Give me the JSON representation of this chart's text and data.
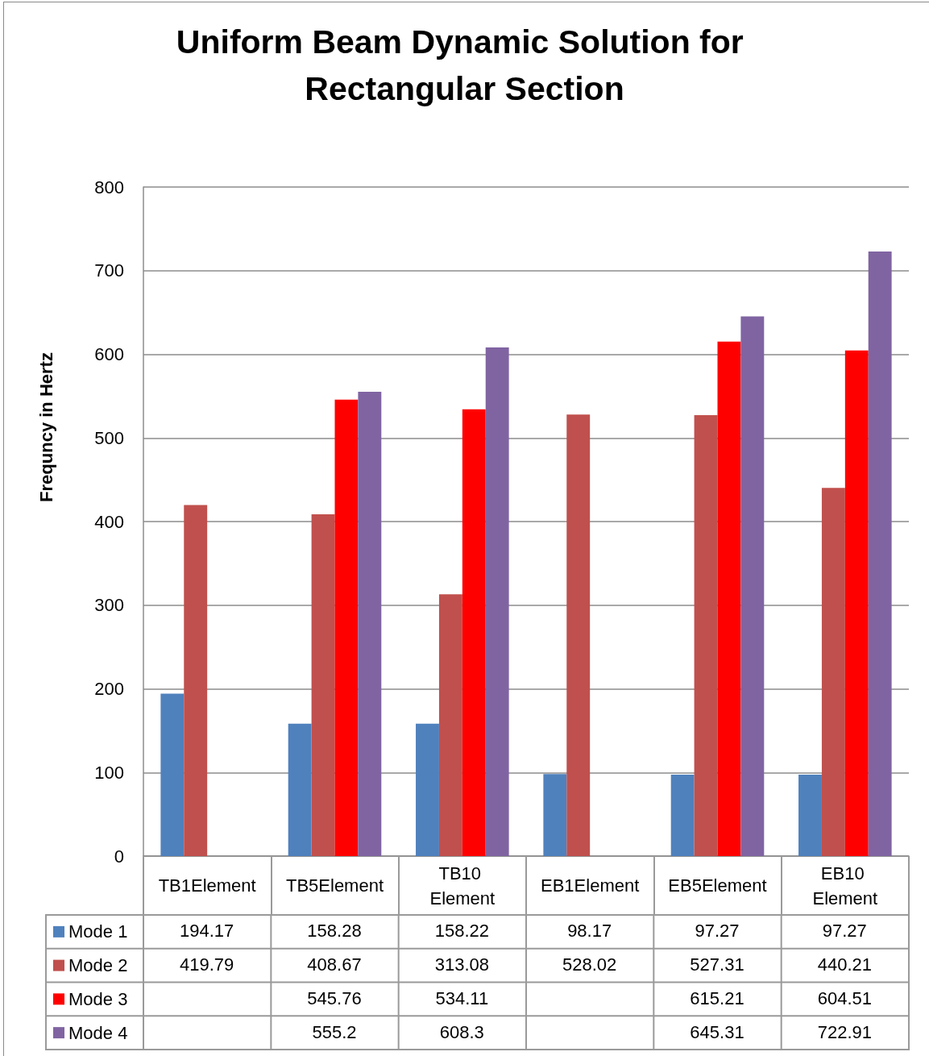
{
  "chart_data": {
    "type": "bar",
    "title": "Uniform Beam Dynamic Solution for Rectangular Section",
    "ylabel": "Frequncy in Hertz",
    "categories": [
      "TB1Element",
      "TB5Element",
      "TB10 Element",
      "EB1Element",
      "EB5Element",
      "EB10 Element"
    ],
    "series": [
      {
        "name": "Mode 1",
        "color": "#4f81bd",
        "values": [
          194.17,
          158.28,
          158.22,
          98.17,
          97.27,
          97.27
        ]
      },
      {
        "name": "Mode 2",
        "color": "#c0504d",
        "values": [
          419.79,
          408.67,
          313.08,
          528.02,
          527.31,
          440.21
        ]
      },
      {
        "name": "Mode 3",
        "color": "#ff0000",
        "values": [
          null,
          545.76,
          534.11,
          null,
          615.21,
          604.51
        ]
      },
      {
        "name": "Mode 4",
        "color": "#8064a2",
        "values": [
          null,
          555.2,
          608.3,
          null,
          645.31,
          722.91
        ]
      }
    ],
    "ylim": [
      0,
      800
    ],
    "yticks": [
      0,
      100,
      200,
      300,
      400,
      500,
      600,
      700,
      800
    ],
    "grid": "y",
    "legend": "bottom",
    "data_labels": true
  }
}
